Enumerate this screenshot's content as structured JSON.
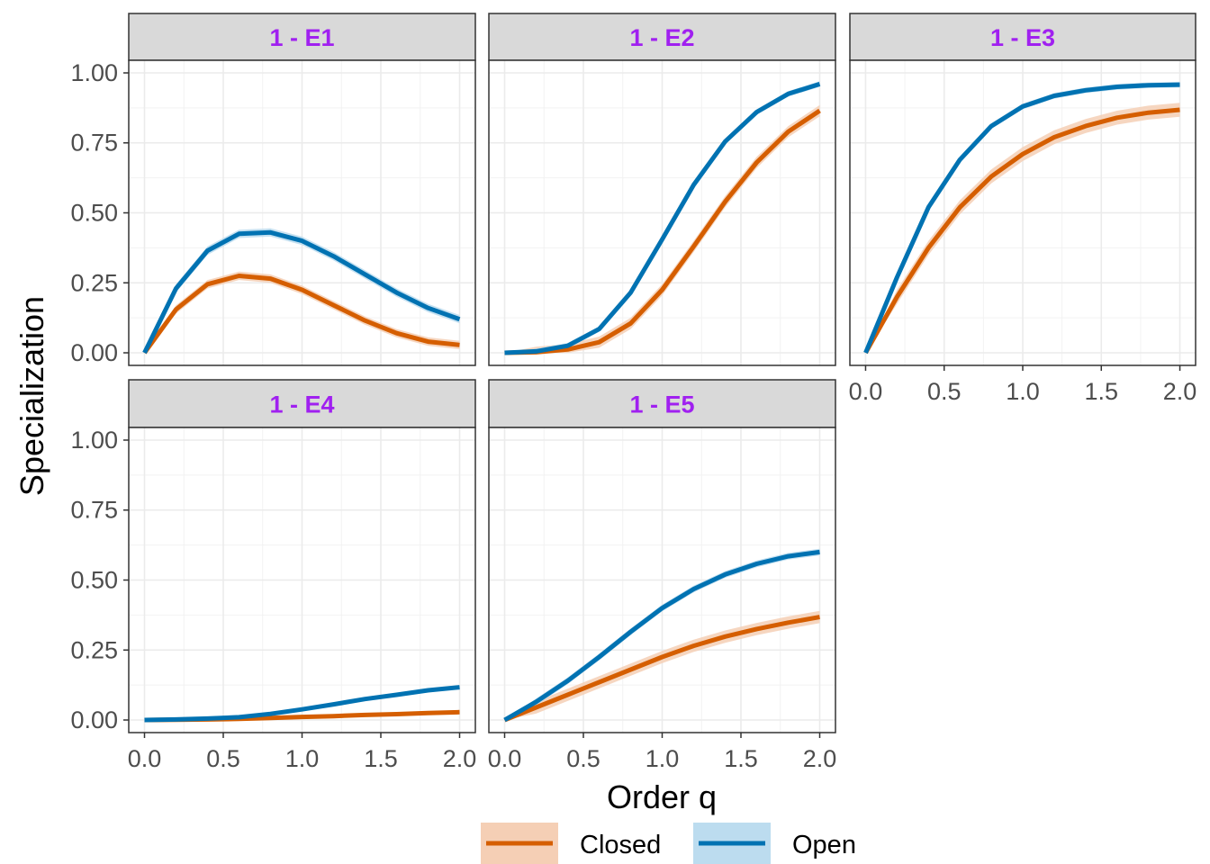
{
  "chart_data": {
    "type": "line",
    "xlabel": "Order q",
    "ylabel": "Specialization",
    "xlim": [
      0,
      2
    ],
    "ylim": [
      0,
      1
    ],
    "x_ticks": [
      "0.0",
      "0.5",
      "1.0",
      "1.5",
      "2.0"
    ],
    "y_ticks": [
      "0.00",
      "0.25",
      "0.50",
      "0.75",
      "1.00"
    ],
    "grid": true,
    "legend_position": "bottom",
    "colors": {
      "Closed": "#d55e00",
      "Open": "#0072b2",
      "strip_text": "#a020f0"
    },
    "x": [
      0.0,
      0.2,
      0.4,
      0.6,
      0.8,
      1.0,
      1.2,
      1.4,
      1.6,
      1.8,
      2.0
    ],
    "legend": [
      {
        "name": "Closed",
        "color": "#d55e00",
        "band": "#f5cfb5"
      },
      {
        "name": "Open",
        "color": "#0072b2",
        "band": "#bcdcef"
      }
    ],
    "panels": [
      {
        "title": "1 - E1",
        "series": [
          {
            "name": "Closed",
            "values": [
              0.0,
              0.155,
              0.245,
              0.275,
              0.265,
              0.225,
              0.17,
              0.115,
              0.07,
              0.04,
              0.028
            ],
            "band": 0.015
          },
          {
            "name": "Open",
            "values": [
              0.0,
              0.23,
              0.365,
              0.425,
              0.43,
              0.4,
              0.345,
              0.28,
              0.215,
              0.16,
              0.12
            ],
            "band": 0.015
          }
        ]
      },
      {
        "title": "1 - E2",
        "series": [
          {
            "name": "Closed",
            "values": [
              0.0,
              0.002,
              0.012,
              0.038,
              0.105,
              0.225,
              0.38,
              0.54,
              0.68,
              0.79,
              0.865
            ],
            "band": 0.02
          },
          {
            "name": "Open",
            "values": [
              0.0,
              0.005,
              0.025,
              0.085,
              0.215,
              0.405,
              0.6,
              0.755,
              0.86,
              0.925,
              0.96
            ],
            "band": 0.01
          }
        ]
      },
      {
        "title": "1 - E3",
        "series": [
          {
            "name": "Closed",
            "values": [
              0.0,
              0.2,
              0.375,
              0.52,
              0.63,
              0.71,
              0.77,
              0.81,
              0.84,
              0.858,
              0.868
            ],
            "band": 0.025
          },
          {
            "name": "Open",
            "values": [
              0.0,
              0.27,
              0.52,
              0.69,
              0.81,
              0.88,
              0.918,
              0.938,
              0.95,
              0.956,
              0.958
            ],
            "band": 0.01
          }
        ]
      },
      {
        "title": "1 - E4",
        "series": [
          {
            "name": "Closed",
            "values": [
              0.0,
              0.001,
              0.002,
              0.004,
              0.007,
              0.011,
              0.014,
              0.018,
              0.021,
              0.025,
              0.028
            ],
            "band": 0.004
          },
          {
            "name": "Open",
            "values": [
              0.0,
              0.002,
              0.005,
              0.01,
              0.022,
              0.038,
              0.056,
              0.075,
              0.09,
              0.106,
              0.117
            ],
            "band": 0.006
          }
        ]
      },
      {
        "title": "1 - E5",
        "series": [
          {
            "name": "Closed",
            "values": [
              0.0,
              0.045,
              0.09,
              0.135,
              0.18,
              0.225,
              0.265,
              0.298,
              0.325,
              0.348,
              0.368
            ],
            "band": 0.022
          },
          {
            "name": "Open",
            "values": [
              0.0,
              0.065,
              0.14,
              0.225,
              0.315,
              0.4,
              0.468,
              0.52,
              0.558,
              0.585,
              0.6
            ],
            "band": 0.012
          }
        ]
      }
    ]
  }
}
